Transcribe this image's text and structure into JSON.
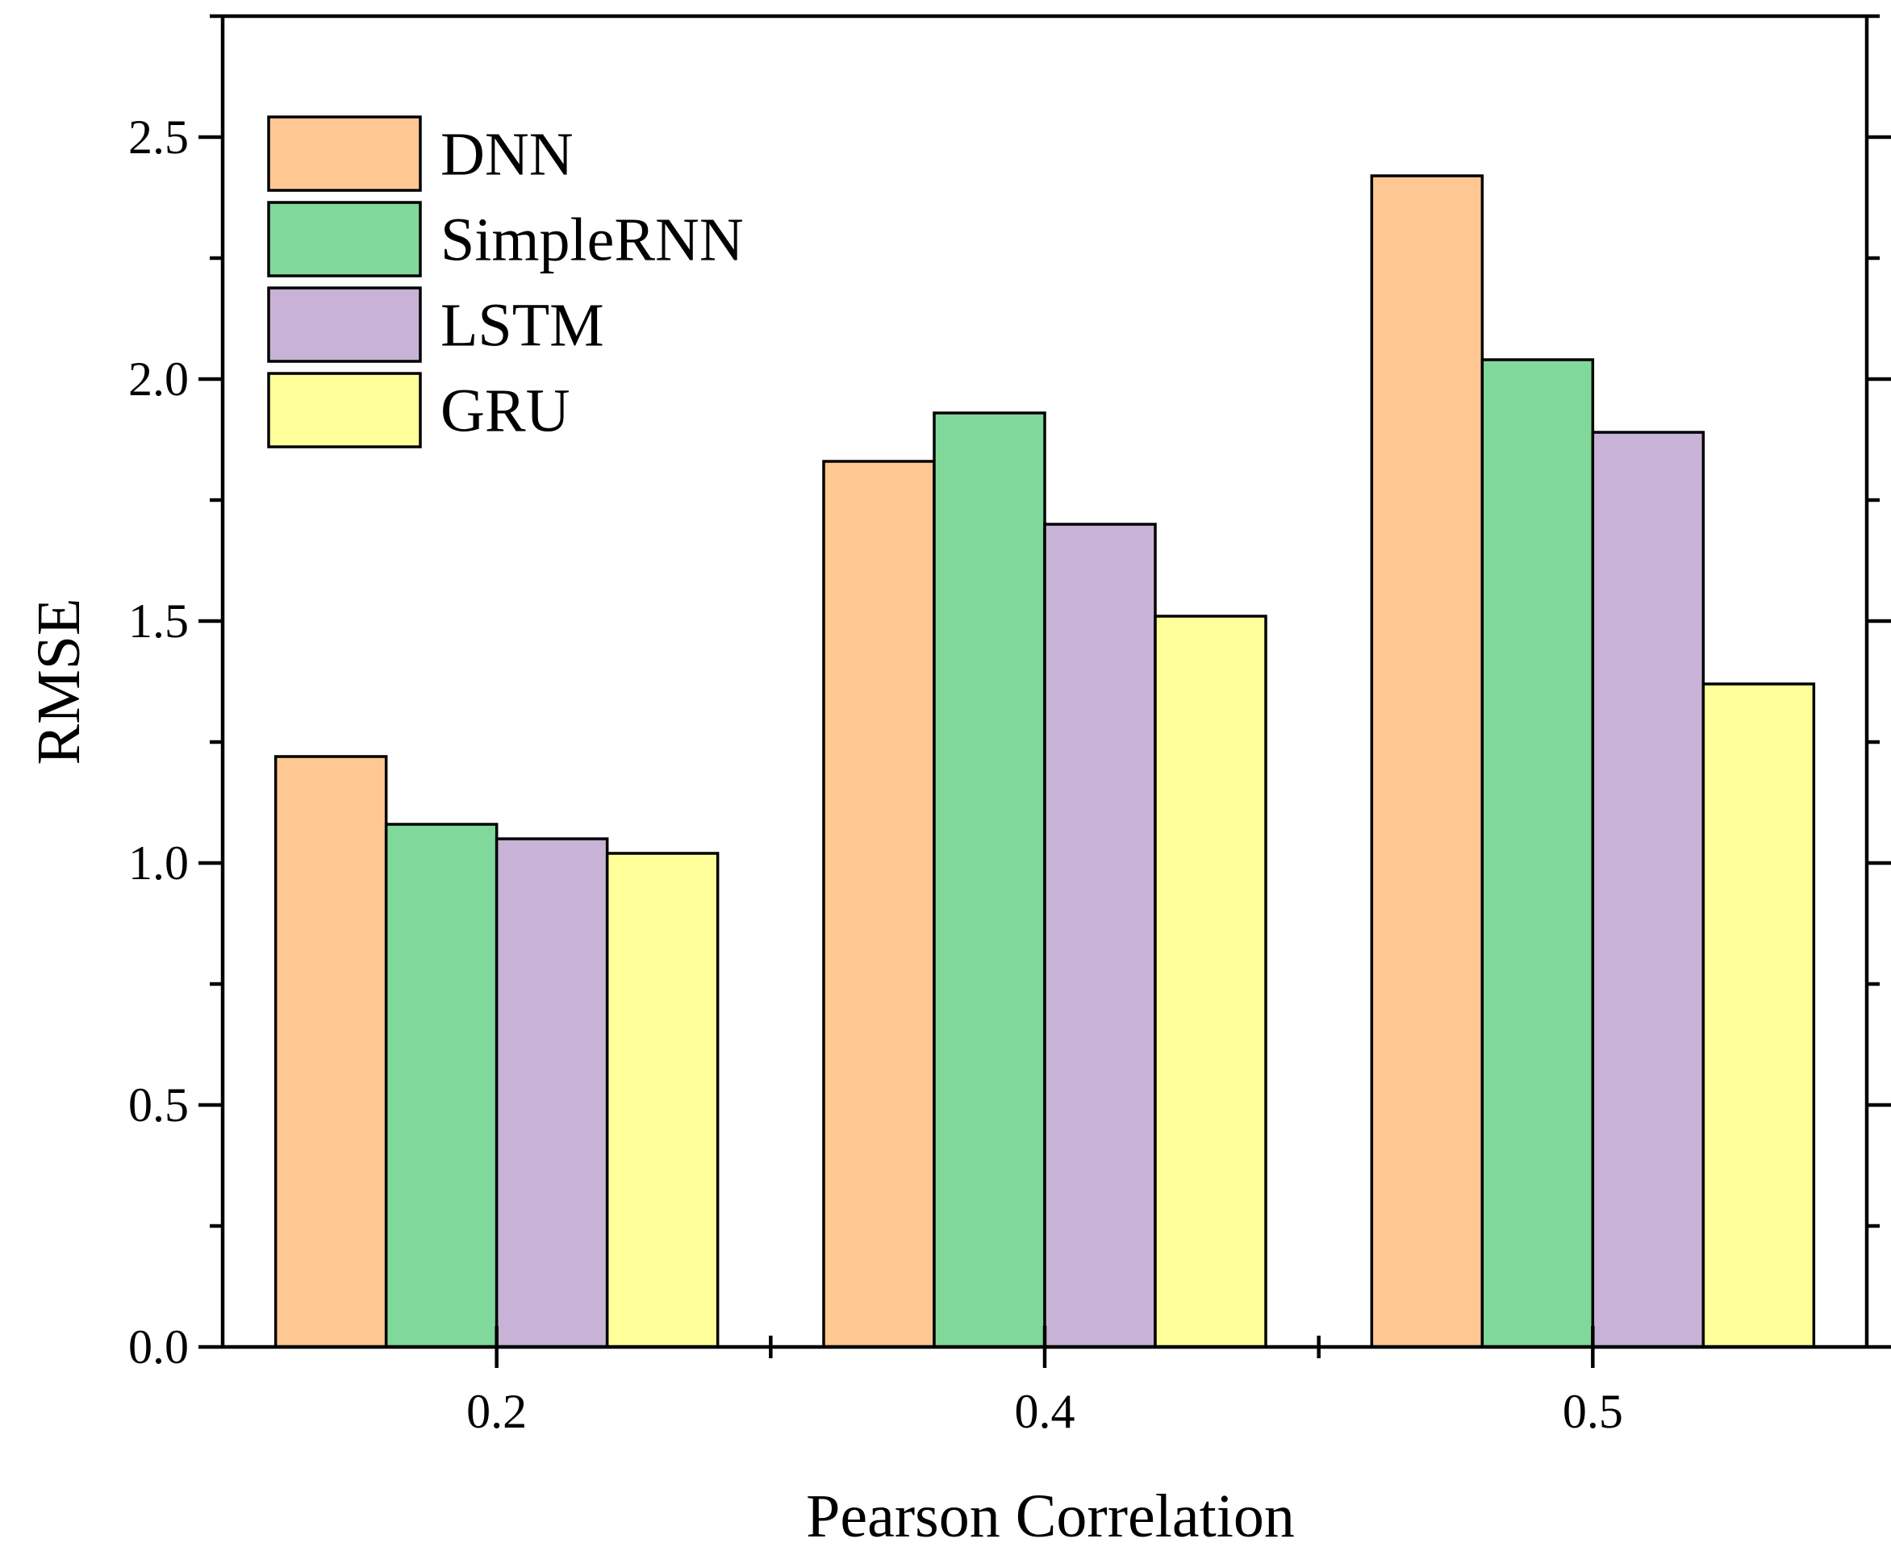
{
  "chart_data": {
    "type": "bar",
    "title": "",
    "xlabel": "Pearson Correlation",
    "ylabel": "RMSE",
    "categories": [
      "0.2",
      "0.4",
      "0.5"
    ],
    "ylim": [
      0,
      2.75
    ],
    "yticks": [
      "0.0",
      "0.5",
      "1.0",
      "1.5",
      "2.0",
      "2.5"
    ],
    "legend_position": "top-left",
    "grid": false,
    "series": [
      {
        "name": "DNN",
        "color": "#FFC892",
        "values": [
          1.22,
          1.83,
          2.42
        ]
      },
      {
        "name": "SimpleRNN",
        "color": "#80D99A",
        "values": [
          1.08,
          1.93,
          2.04
        ]
      },
      {
        "name": "LSTM",
        "color": "#C8B3D6",
        "values": [
          1.05,
          1.7,
          1.89
        ]
      },
      {
        "name": "GRU",
        "color": "#FFFF99",
        "values": [
          1.02,
          1.51,
          1.37
        ]
      }
    ]
  }
}
